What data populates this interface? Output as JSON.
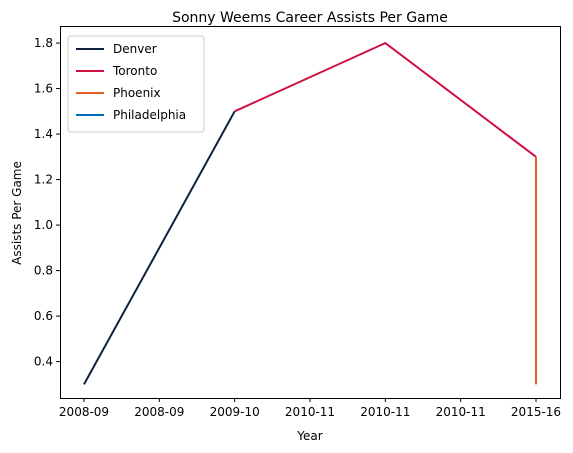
{
  "chart_data": {
    "type": "line",
    "title": "Sonny Weems Career Assists Per Game",
    "xlabel": "Year",
    "ylabel": "Assists Per Game",
    "categories": [
      "2008-09",
      "2008-09",
      "2009-10",
      "2010-11",
      "2010-11",
      "2010-11",
      "2015-16"
    ],
    "ylim": [
      0.24,
      1.875
    ],
    "yticks": [
      0.4,
      0.6,
      0.8,
      1.0,
      1.2,
      1.4,
      1.6,
      1.8
    ],
    "ytick_labels": [
      "0.4",
      "0.6",
      "0.8",
      "1.0",
      "1.2",
      "1.4",
      "1.6",
      "1.8"
    ],
    "legend_position": "top-left",
    "series": [
      {
        "name": "Denver",
        "color": "#0e2240",
        "points": [
          [
            0,
            0.3
          ],
          [
            2,
            1.5
          ]
        ]
      },
      {
        "name": "Toronto",
        "color": "#ce1141",
        "points": [
          [
            2,
            1.5
          ],
          [
            4,
            1.8
          ],
          [
            6,
            1.3
          ]
        ]
      },
      {
        "name": "Phoenix",
        "color": "#e56020",
        "points": [
          [
            6,
            1.3
          ],
          [
            6,
            0.3
          ]
        ]
      },
      {
        "name": "Philadelphia",
        "color": "#006bb6",
        "points": []
      }
    ]
  }
}
